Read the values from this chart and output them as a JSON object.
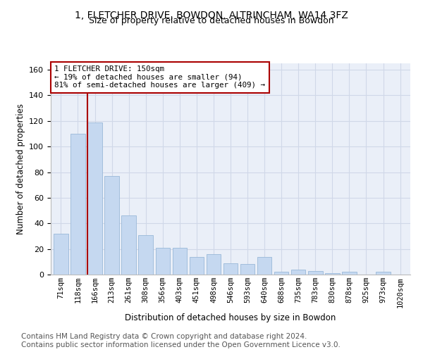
{
  "title_line1": "1, FLETCHER DRIVE, BOWDON, ALTRINCHAM, WA14 3FZ",
  "title_line2": "Size of property relative to detached houses in Bowdon",
  "xlabel": "Distribution of detached houses by size in Bowdon",
  "ylabel": "Number of detached properties",
  "bar_labels": [
    "71sqm",
    "118sqm",
    "166sqm",
    "213sqm",
    "261sqm",
    "308sqm",
    "356sqm",
    "403sqm",
    "451sqm",
    "498sqm",
    "546sqm",
    "593sqm",
    "640sqm",
    "688sqm",
    "735sqm",
    "783sqm",
    "830sqm",
    "878sqm",
    "925sqm",
    "973sqm",
    "1020sqm"
  ],
  "bar_values": [
    32,
    110,
    119,
    77,
    46,
    31,
    21,
    21,
    14,
    16,
    9,
    8,
    14,
    2,
    4,
    3,
    1,
    2,
    0,
    2,
    0
  ],
  "bar_color": "#c5d8f0",
  "bar_edge_color": "#9ab8d8",
  "vline_x_index": 2,
  "vline_color": "#aa0000",
  "annotation_line1": "1 FLETCHER DRIVE: 150sqm",
  "annotation_line2": "← 19% of detached houses are smaller (94)",
  "annotation_line3": "81% of semi-detached houses are larger (409) →",
  "annotation_box_edge": "#aa0000",
  "ylim": [
    0,
    165
  ],
  "yticks": [
    0,
    20,
    40,
    60,
    80,
    100,
    120,
    140,
    160
  ],
  "grid_color": "#d0d8e8",
  "bg_color": "#eaeff8",
  "footer_line1": "Contains HM Land Registry data © Crown copyright and database right 2024.",
  "footer_line2": "Contains public sector information licensed under the Open Government Licence v3.0.",
  "footer_fontsize": 7.5,
  "title_fontsize": 10,
  "subtitle_fontsize": 9
}
